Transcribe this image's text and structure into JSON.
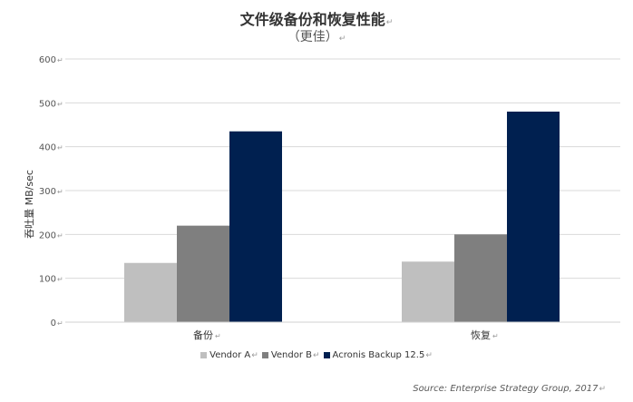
{
  "chart_data": {
    "type": "bar",
    "title": "文件级备份和恢复性能",
    "subtitle": "（更佳）",
    "ylabel": "吞吐量 MB/sec",
    "categories": [
      "备份",
      "恢复"
    ],
    "series": [
      {
        "name": "Vendor A",
        "values": [
          135,
          138
        ],
        "color": "#bfbfbf"
      },
      {
        "name": "Vendor B",
        "values": [
          220,
          200
        ],
        "color": "#7f7f7f"
      },
      {
        "name": "Acronis Backup 12.5",
        "values": [
          435,
          480
        ],
        "color": "#002050"
      }
    ],
    "ylim": [
      0,
      600
    ],
    "yticks": [
      0,
      100,
      200,
      300,
      400,
      500,
      600
    ],
    "grid": true,
    "legend_position": "bottom",
    "source": "Source: Enterprise Strategy Group, 2017"
  }
}
